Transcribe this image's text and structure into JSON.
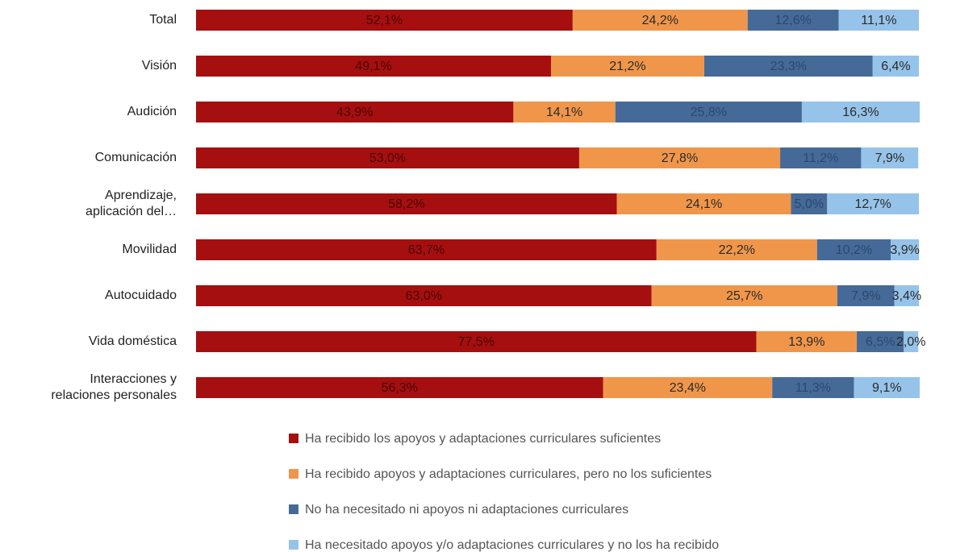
{
  "chart_data": {
    "type": "stacked-bar-horizontal",
    "categories": [
      "Total",
      "Visión",
      "Audición",
      "Comunicación",
      "Aprendizaje, aplicación del…",
      "Movilidad",
      "Autocuidado",
      "Vida doméstica",
      "Interacciones y relaciones personales"
    ],
    "series": [
      {
        "name": "Ha recibido los apoyos y adaptaciones curriculares suficientes",
        "color": "#a50f0f",
        "values": [
          52.1,
          49.1,
          43.9,
          53.0,
          58.2,
          63.7,
          63.0,
          77.5,
          56.3
        ],
        "value_labels": [
          "52,1%",
          "49,1%",
          "43,9%",
          "53,0%",
          "58,2%",
          "63,7%",
          "63,0%",
          "77,5%",
          "56,3%"
        ]
      },
      {
        "name": "Ha recibido apoyos y adaptaciones curriculares, pero no los suficientes",
        "color": "#f0964b",
        "values": [
          24.2,
          21.2,
          14.1,
          27.8,
          24.1,
          22.2,
          25.7,
          13.9,
          23.4
        ],
        "value_labels": [
          "24,2%",
          "21,2%",
          "14,1%",
          "27,8%",
          "24,1%",
          "22,2%",
          "25,7%",
          "13,9%",
          "23,4%"
        ]
      },
      {
        "name": "No ha necesitado ni apoyos ni adaptaciones curriculares",
        "color": "#456a97",
        "values": [
          12.6,
          23.3,
          25.8,
          11.2,
          5.0,
          10.2,
          7.9,
          6.5,
          11.3
        ],
        "value_labels": [
          "12,6%",
          "23,3%",
          "25,8%",
          "11,2%",
          "5,0%",
          "10,2%",
          "7,9%",
          "6,5%",
          "11,3%"
        ]
      },
      {
        "name": "Ha necesitado apoyos y/o adaptaciones curriculares y no los ha recibido",
        "color": "#96c3e9",
        "values": [
          11.1,
          6.4,
          16.3,
          7.9,
          12.7,
          3.9,
          3.4,
          2.0,
          9.1
        ],
        "value_labels": [
          "11,1%",
          "6,4%",
          "16,3%",
          "7,9%",
          "12,7%",
          "3,9%",
          "3,4%",
          "2,0%",
          "9,1%"
        ]
      }
    ]
  }
}
